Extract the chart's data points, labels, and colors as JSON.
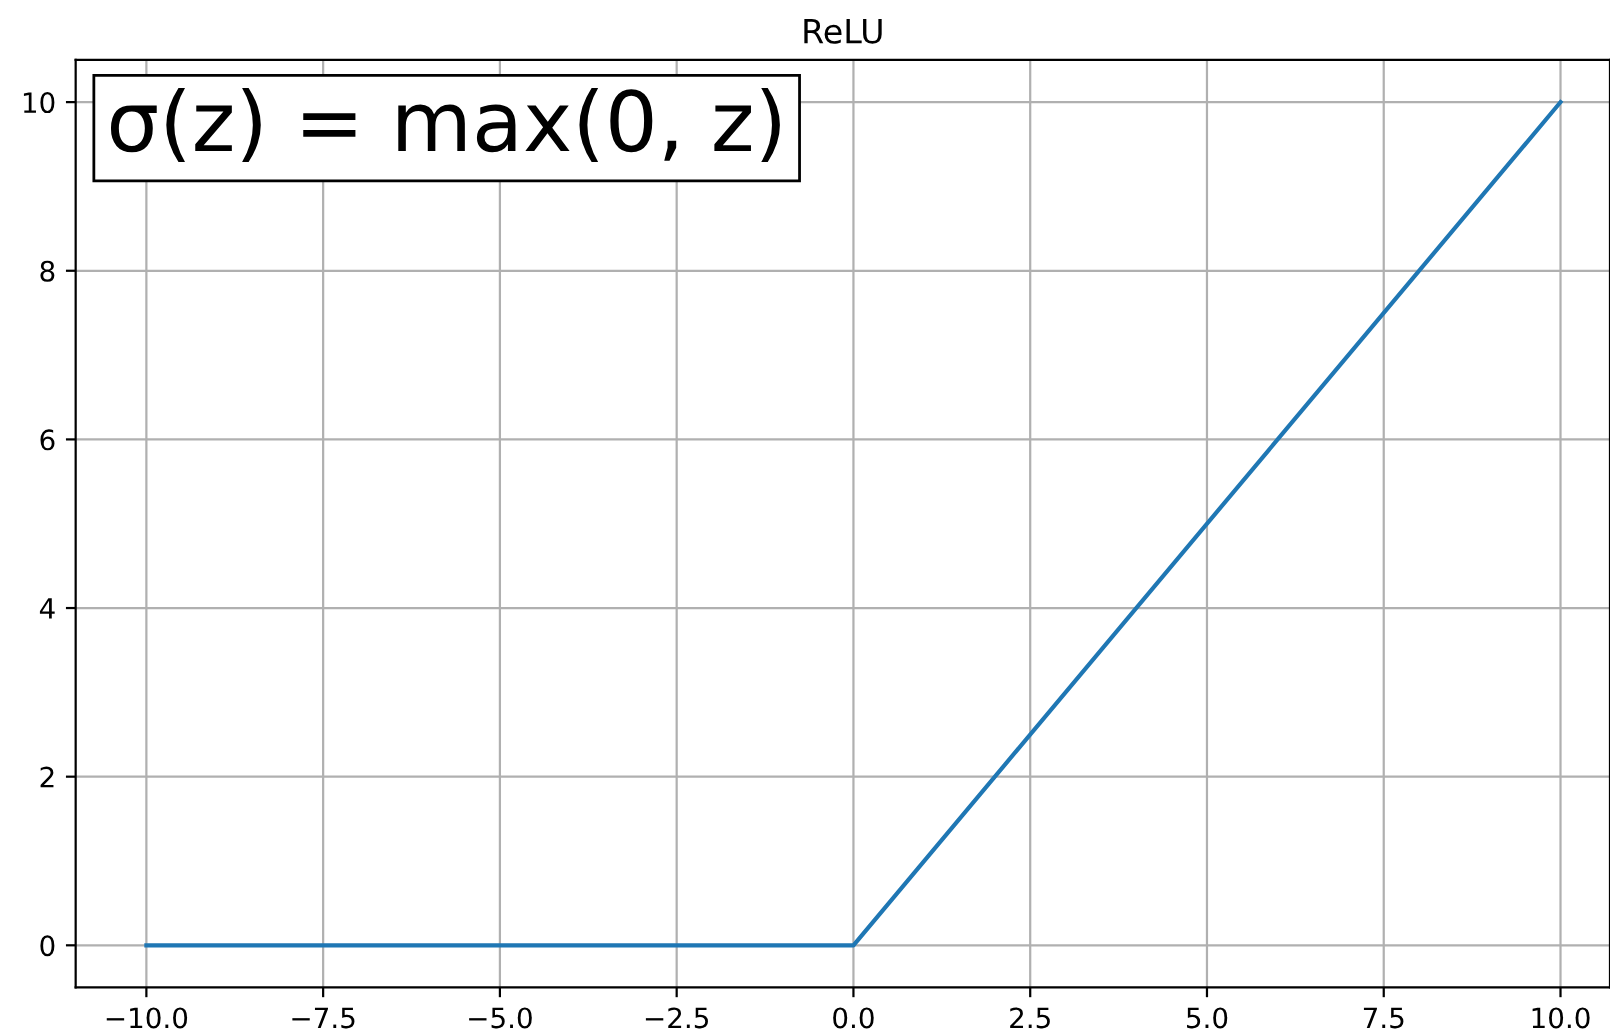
{
  "chart_data": {
    "type": "line",
    "title": "ReLU",
    "x": [
      -10,
      0,
      10
    ],
    "series": [
      {
        "color": "#1f77b4",
        "values": [
          0,
          0,
          10
        ]
      }
    ],
    "xlim": [
      -11,
      10.7
    ],
    "ylim": [
      -0.5,
      10.5
    ],
    "xticks": [
      {
        "value": -10,
        "label": "−10.0"
      },
      {
        "value": -7.5,
        "label": "−7.5"
      },
      {
        "value": -5,
        "label": "−5.0"
      },
      {
        "value": -2.5,
        "label": "−2.5"
      },
      {
        "value": 0,
        "label": "0.0"
      },
      {
        "value": 2.5,
        "label": "2.5"
      },
      {
        "value": 5,
        "label": "5.0"
      },
      {
        "value": 7.5,
        "label": "7.5"
      },
      {
        "value": 10,
        "label": "10.0"
      }
    ],
    "yticks": [
      0,
      2,
      4,
      6,
      8,
      10
    ],
    "grid": true,
    "annotations": [
      "σ(z) = max(0, z)"
    ]
  }
}
